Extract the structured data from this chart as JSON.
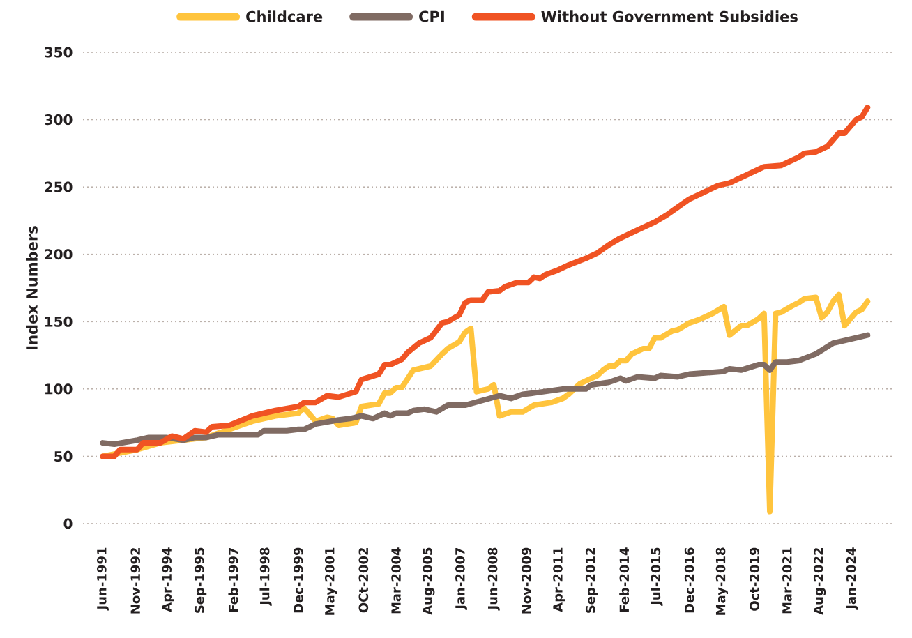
{
  "chart_data": {
    "type": "line",
    "ylabel": "Index Numbers",
    "xlim": [
      "1990-08",
      "2025-10"
    ],
    "ylim": [
      0,
      350
    ],
    "xticks": [
      {
        "value": "1991-06",
        "label": "Jun-1991"
      },
      {
        "value": "1992-11",
        "label": "Nov-1992"
      },
      {
        "value": "1994-04",
        "label": "Apr-1994"
      },
      {
        "value": "1995-09",
        "label": "Sep-1995"
      },
      {
        "value": "1997-02",
        "label": "Feb-1997"
      },
      {
        "value": "1998-07",
        "label": "Jul-1998"
      },
      {
        "value": "1999-12",
        "label": "Dec-1999"
      },
      {
        "value": "2001-05",
        "label": "May-2001"
      },
      {
        "value": "2002-10",
        "label": "OCt-2002"
      },
      {
        "value": "2004-03",
        "label": "Mar-2004"
      },
      {
        "value": "2005-08",
        "label": "Aug-2005"
      },
      {
        "value": "2007-01",
        "label": "Jan-2007"
      },
      {
        "value": "2008-06",
        "label": "Jun-2008"
      },
      {
        "value": "2009-11",
        "label": "Nov-2009"
      },
      {
        "value": "2011-04",
        "label": "Apr-2011"
      },
      {
        "value": "2012-09",
        "label": "Sep-2012"
      },
      {
        "value": "2014-02",
        "label": "Feb-2014"
      },
      {
        "value": "2015-07",
        "label": "Jul-2015"
      },
      {
        "value": "2016-12",
        "label": "Dec-2016"
      },
      {
        "value": "2018-05",
        "label": "May-2018"
      },
      {
        "value": "2019-10",
        "label": "Oct-2019"
      },
      {
        "value": "2021-03",
        "label": "Mar-2021"
      },
      {
        "value": "2022-08",
        "label": "Aug-2022"
      },
      {
        "value": "2024-01",
        "label": "Jan-2024"
      }
    ],
    "yticks": [
      0,
      50,
      100,
      150,
      200,
      250,
      300,
      350
    ],
    "grid": "y",
    "legend": "top",
    "line_style": "solid",
    "series": [
      {
        "name": "Childcare",
        "color": "#ffc43d",
        "x": [
          "1991-06",
          "1992-12",
          "1993-12",
          "1994-12",
          "1995-12",
          "1996-12",
          "1997-12",
          "1998-12",
          "1999-12",
          "2000-03",
          "2000-09",
          "2001-03",
          "2001-06",
          "2001-09",
          "2002-06",
          "2002-09",
          "2003-06",
          "2003-09",
          "2003-12",
          "2004-03",
          "2004-06",
          "2004-12",
          "2005-09",
          "2006-03",
          "2006-06",
          "2006-12",
          "2007-03",
          "2007-06",
          "2007-09",
          "2008-03",
          "2008-06",
          "2008-09",
          "2009-03",
          "2009-09",
          "2010-03",
          "2010-12",
          "2011-06",
          "2011-09",
          "2012-03",
          "2012-12",
          "2013-03",
          "2013-06",
          "2013-09",
          "2013-12",
          "2014-03",
          "2014-06",
          "2014-12",
          "2015-03",
          "2015-06",
          "2015-09",
          "2016-03",
          "2016-06",
          "2016-12",
          "2017-06",
          "2017-12",
          "2018-06",
          "2018-09",
          "2019-03",
          "2019-06",
          "2019-12",
          "2020-03",
          "2020-06",
          "2020-09",
          "2020-12",
          "2021-06",
          "2021-09",
          "2021-12",
          "2022-06",
          "2022-09",
          "2022-12",
          "2023-03",
          "2023-06",
          "2023-09",
          "2024-03",
          "2024-06",
          "2024-09"
        ],
        "values": [
          50,
          55,
          60,
          62,
          64,
          70,
          76,
          80,
          82,
          86,
          76,
          79,
          78,
          73,
          75,
          87,
          89,
          97,
          97,
          101,
          101,
          114,
          117,
          126,
          130,
          135,
          142,
          145,
          98,
          100,
          103,
          80,
          83,
          83,
          88,
          90,
          93,
          96,
          104,
          110,
          114,
          117,
          117,
          121,
          121,
          126,
          130,
          130,
          138,
          138,
          143,
          144,
          149,
          152,
          156,
          161,
          140,
          147,
          147,
          152,
          156,
          9,
          156,
          157,
          162,
          164,
          167,
          168,
          153,
          157,
          165,
          170,
          147,
          157,
          159,
          165
        ]
      },
      {
        "name": "CPI",
        "color": "#806b63",
        "x": [
          "1991-06",
          "1991-12",
          "1992-12",
          "1993-06",
          "1994-03",
          "1994-12",
          "1995-06",
          "1995-12",
          "1996-06",
          "1998-03",
          "1998-06",
          "1999-06",
          "1999-12",
          "2000-03",
          "2000-09",
          "2001-09",
          "2002-03",
          "2002-09",
          "2003-03",
          "2003-09",
          "2003-12",
          "2004-03",
          "2004-09",
          "2004-12",
          "2005-06",
          "2005-12",
          "2006-06",
          "2007-03",
          "2008-09",
          "2009-03",
          "2009-09",
          "2010-03",
          "2011-06",
          "2011-09",
          "2012-06",
          "2012-09",
          "2013-06",
          "2013-12",
          "2014-03",
          "2014-09",
          "2015-06",
          "2015-09",
          "2016-06",
          "2016-12",
          "2018-06",
          "2018-09",
          "2019-03",
          "2019-12",
          "2020-03",
          "2020-06",
          "2020-09",
          "2021-03",
          "2021-09",
          "2022-06",
          "2023-03",
          "2023-09",
          "2024-06",
          "2024-09"
        ],
        "values": [
          60,
          59,
          62,
          64,
          64,
          62,
          64,
          64,
          66,
          66,
          69,
          69,
          70,
          70,
          74,
          77,
          78,
          80,
          78,
          82,
          80,
          82,
          82,
          84,
          85,
          83,
          88,
          88,
          95,
          93,
          96,
          97,
          100,
          100,
          100,
          103,
          105,
          108,
          106,
          109,
          108,
          110,
          109,
          111,
          113,
          115,
          114,
          118,
          118,
          114,
          120,
          120,
          121,
          126,
          134,
          136,
          139,
          140
        ]
      },
      {
        "name": "Without Government Subsidies",
        "color": "#f05323",
        "x": [
          "1991-06",
          "1991-12",
          "1992-03",
          "1992-12",
          "1993-03",
          "1993-12",
          "1994-06",
          "1994-12",
          "1995-06",
          "1995-12",
          "1996-03",
          "1996-12",
          "1997-12",
          "1998-12",
          "1999-12",
          "2000-03",
          "2000-09",
          "2001-03",
          "2001-09",
          "2002-06",
          "2002-09",
          "2003-06",
          "2003-09",
          "2003-12",
          "2004-06",
          "2004-09",
          "2005-03",
          "2005-09",
          "2006-03",
          "2006-06",
          "2006-12",
          "2007-03",
          "2007-06",
          "2007-12",
          "2008-03",
          "2008-09",
          "2008-12",
          "2009-06",
          "2009-12",
          "2010-03",
          "2010-06",
          "2010-09",
          "2011-03",
          "2011-09",
          "2012-06",
          "2012-12",
          "2013-06",
          "2013-12",
          "2014-09",
          "2015-06",
          "2015-12",
          "2016-06",
          "2016-12",
          "2017-06",
          "2018-03",
          "2018-09",
          "2019-03",
          "2019-12",
          "2020-03",
          "2020-12",
          "2021-09",
          "2021-12",
          "2022-06",
          "2022-12",
          "2023-03",
          "2023-06",
          "2023-09",
          "2024-03",
          "2024-06",
          "2024-09"
        ],
        "values": [
          50,
          50,
          55,
          55,
          60,
          60,
          65,
          63,
          69,
          68,
          72,
          73,
          80,
          84,
          87,
          90,
          90,
          95,
          94,
          98,
          107,
          111,
          118,
          118,
          122,
          127,
          134,
          138,
          149,
          150,
          155,
          164,
          166,
          166,
          172,
          173,
          176,
          179,
          179,
          183,
          182,
          185,
          188,
          192,
          197,
          201,
          207,
          212,
          218,
          224,
          229,
          235,
          241,
          245,
          251,
          253,
          257,
          263,
          265,
          266,
          272,
          275,
          276,
          280,
          285,
          290,
          290,
          300,
          302,
          309
        ]
      }
    ]
  }
}
